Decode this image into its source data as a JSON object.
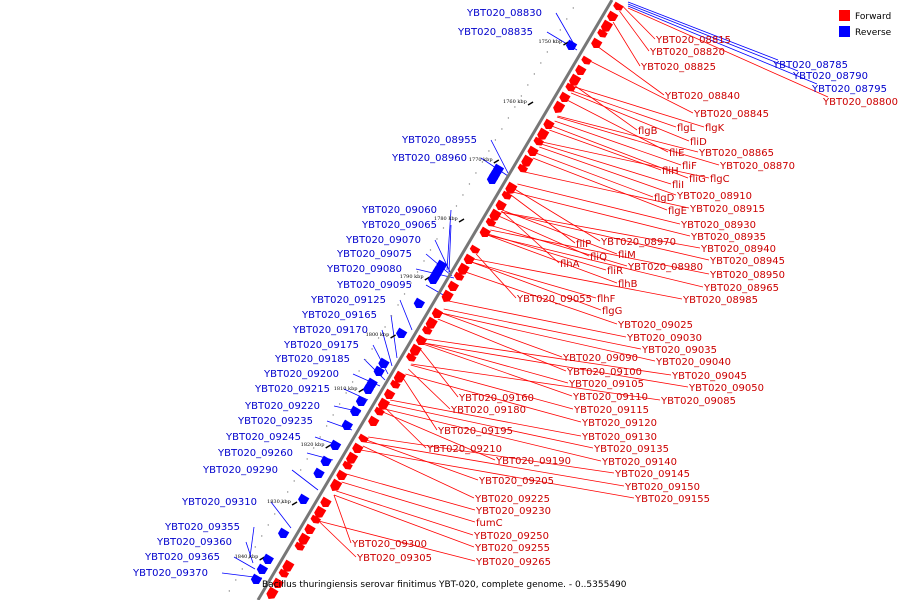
{
  "legend": {
    "forward_label": "Forward",
    "reverse_label": "Reverse",
    "forward_color": "#ff0000",
    "reverse_color": "#0000ff"
  },
  "caption": "Bacillus thuringiensis serovar finitimus YBT-020, complete genome. - 0..5355490",
  "scale_labels": [
    "1750 kbp",
    "1760 kbp",
    "1770 kbp",
    "1780 kbp",
    "1790 kbp",
    "1800 kbp",
    "1810 kbp",
    "1820 kbp",
    "1830 kbp",
    "1840 kbp"
  ],
  "reverse_genes": [
    "YBT020_08830",
    "YBT020_08835",
    "YBT020_08955",
    "YBT020_08960",
    "YBT020_09060",
    "YBT020_09065",
    "YBT020_09070",
    "YBT020_09075",
    "YBT020_09080",
    "YBT020_09095",
    "YBT020_09125",
    "YBT020_09165",
    "YBT020_09170",
    "YBT020_09175",
    "YBT020_09185",
    "YBT020_09200",
    "YBT020_09215",
    "YBT020_09220",
    "YBT020_09235",
    "YBT020_09245",
    "YBT020_09260",
    "YBT020_09290",
    "YBT020_09310",
    "YBT020_09355",
    "YBT020_09360",
    "YBT020_09365",
    "YBT020_09370"
  ],
  "far_genes": [
    "YBT020_08785",
    "YBT020_08790",
    "YBT020_08795",
    "YBT020_08800"
  ],
  "forward_genes": [
    "YBT020_08815",
    "YBT020_08820",
    "YBT020_08825",
    "YBT020_08840",
    "YBT020_08845",
    "flgL",
    "flgK",
    "flgB",
    "fliD",
    "fliE",
    "YBT020_08865",
    "fliH",
    "fliF",
    "YBT020_08870",
    "fliG",
    "flgC",
    "fliI",
    "flgD",
    "YBT020_08910",
    "flgE",
    "YBT020_08915",
    "YBT020_08930",
    "YBT020_08935",
    "fliP",
    "YBT020_08970",
    "YBT020_08940",
    "fliQ",
    "fliM",
    "YBT020_08945",
    "flhA",
    "fliR",
    "YBT020_08980",
    "YBT020_08950",
    "flhB",
    "YBT020_08965",
    "flhF",
    "YBT020_08985",
    "YBT020_09055",
    "flgG",
    "YBT020_09025",
    "YBT020_09030",
    "YBT020_09035",
    "YBT020_09090",
    "YBT020_09040",
    "YBT020_09100",
    "YBT020_09045",
    "YBT020_09105",
    "YBT020_09050",
    "YBT020_09160",
    "YBT020_09110",
    "YBT020_09085",
    "YBT020_09180",
    "YBT020_09115",
    "YBT020_09120",
    "YBT020_09195",
    "YBT020_09130",
    "YBT020_09210",
    "YBT020_09135",
    "YBT020_09190",
    "YBT020_09140",
    "YBT020_09145",
    "YBT020_09205",
    "YBT020_09150",
    "YBT020_09155",
    "YBT020_09225",
    "YBT020_09230",
    "fumC",
    "YBT020_09250",
    "YBT020_09300",
    "YBT020_09255",
    "YBT020_09305",
    "YBT020_09265"
  ]
}
